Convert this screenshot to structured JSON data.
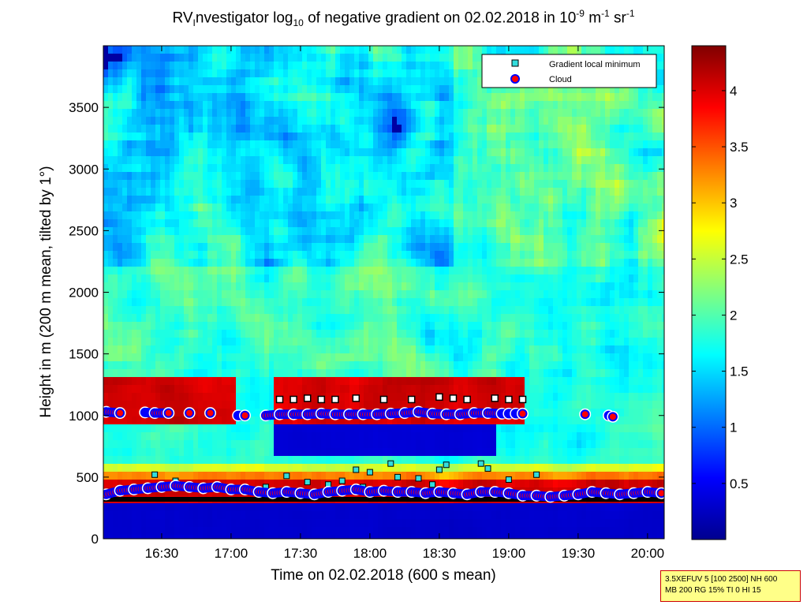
{
  "chart_data": {
    "type": "heatmap",
    "title_parts": {
      "prefix": "RV",
      "sub1": "I",
      "mid": "nvestigator log",
      "sub2": "10",
      "rest": " of negative gradient on 02.02.2018 in 10",
      "sup1": "-9",
      "unit1": " m",
      "sup2": "-1",
      "unit2": " sr",
      "sup3": "-1"
    },
    "xlabel": "Time on 02.02.2018 (600 s mean)",
    "ylabel": "Height in m (200 m mean, tilted by 1°)",
    "x_ticks": [
      "16:30",
      "17:00",
      "17:30",
      "18:00",
      "18:30",
      "19:00",
      "19:30",
      "20:00"
    ],
    "x_tick_hours": [
      16.5,
      17.0,
      17.5,
      18.0,
      18.5,
      19.0,
      19.5,
      20.0
    ],
    "xlim_hours": [
      16.08,
      20.12
    ],
    "y_ticks": [
      0,
      500,
      1000,
      1500,
      2000,
      2500,
      3000,
      3500
    ],
    "ylim": [
      0,
      4000
    ],
    "colorbar": {
      "ticks": [
        "0.5",
        "1",
        "1.5",
        "2",
        "2.5",
        "3",
        "3.5",
        "4"
      ],
      "tick_values": [
        0.5,
        1,
        1.5,
        2,
        2.5,
        3,
        3.5,
        4
      ],
      "range": [
        0,
        4.4
      ],
      "colormap": [
        "#00008f",
        "#0000ff",
        "#0080ff",
        "#00ffff",
        "#80ff80",
        "#ffff00",
        "#ff8000",
        "#ff0000",
        "#800000"
      ]
    },
    "legend": {
      "position": "top-right",
      "entries": [
        {
          "label": "Gradient local minimum",
          "marker": "square",
          "color": "#33dddd"
        },
        {
          "label": "Cloud",
          "marker": "circle",
          "color": "#ff0000",
          "edge": "#0000ff"
        }
      ]
    },
    "layers_description_values": {
      "low_cloud_height_m": 380,
      "upper_cloud_height_m": 1020,
      "black_minimum_low_m": 320,
      "black_minimum_upper_m": 1130
    },
    "cloud_series": [
      {
        "t": 16.1,
        "h": 1030
      },
      {
        "t": 16.2,
        "h": 1020
      },
      {
        "t": 16.38,
        "h": 1025
      },
      {
        "t": 16.45,
        "h": 1020
      },
      {
        "t": 16.55,
        "h": 1020
      },
      {
        "t": 16.7,
        "h": 1020
      },
      {
        "t": 16.85,
        "h": 1020
      },
      {
        "t": 17.05,
        "h": 1000
      },
      {
        "t": 17.1,
        "h": 1000
      },
      {
        "t": 17.25,
        "h": 1000
      },
      {
        "t": 17.35,
        "h": 1010
      },
      {
        "t": 17.45,
        "h": 1010
      },
      {
        "t": 17.55,
        "h": 1010
      },
      {
        "t": 17.65,
        "h": 1015
      },
      {
        "t": 17.75,
        "h": 1010
      },
      {
        "t": 17.85,
        "h": 1010
      },
      {
        "t": 17.95,
        "h": 1010
      },
      {
        "t": 18.05,
        "h": 1010
      },
      {
        "t": 18.15,
        "h": 1015
      },
      {
        "t": 18.25,
        "h": 1020
      },
      {
        "t": 18.35,
        "h": 1030
      },
      {
        "t": 18.45,
        "h": 1015
      },
      {
        "t": 18.55,
        "h": 1010
      },
      {
        "t": 18.65,
        "h": 1010
      },
      {
        "t": 18.75,
        "h": 1020
      },
      {
        "t": 18.85,
        "h": 1020
      },
      {
        "t": 18.95,
        "h": 1015
      },
      {
        "t": 19.0,
        "h": 1015
      },
      {
        "t": 19.05,
        "h": 1015
      },
      {
        "t": 19.1,
        "h": 1015
      },
      {
        "t": 19.55,
        "h": 1010
      },
      {
        "t": 19.72,
        "h": 1000
      },
      {
        "t": 19.75,
        "h": 990
      }
    ],
    "low_cloud_series": [
      {
        "t": 16.1,
        "h": 360
      },
      {
        "t": 16.2,
        "h": 390
      },
      {
        "t": 16.3,
        "h": 400
      },
      {
        "t": 16.4,
        "h": 410
      },
      {
        "t": 16.5,
        "h": 420
      },
      {
        "t": 16.6,
        "h": 430
      },
      {
        "t": 16.7,
        "h": 420
      },
      {
        "t": 16.8,
        "h": 410
      },
      {
        "t": 16.9,
        "h": 420
      },
      {
        "t": 17.0,
        "h": 400
      },
      {
        "t": 17.1,
        "h": 400
      },
      {
        "t": 17.2,
        "h": 380
      },
      {
        "t": 17.3,
        "h": 370
      },
      {
        "t": 17.4,
        "h": 380
      },
      {
        "t": 17.5,
        "h": 370
      },
      {
        "t": 17.6,
        "h": 360
      },
      {
        "t": 17.7,
        "h": 380
      },
      {
        "t": 17.8,
        "h": 390
      },
      {
        "t": 17.9,
        "h": 400
      },
      {
        "t": 18.0,
        "h": 380
      },
      {
        "t": 18.1,
        "h": 390
      },
      {
        "t": 18.2,
        "h": 380
      },
      {
        "t": 18.3,
        "h": 380
      },
      {
        "t": 18.4,
        "h": 370
      },
      {
        "t": 18.5,
        "h": 380
      },
      {
        "t": 18.6,
        "h": 370
      },
      {
        "t": 18.7,
        "h": 360
      },
      {
        "t": 18.8,
        "h": 380
      },
      {
        "t": 18.9,
        "h": 380
      },
      {
        "t": 19.0,
        "h": 370
      },
      {
        "t": 19.1,
        "h": 350
      },
      {
        "t": 19.2,
        "h": 350
      },
      {
        "t": 19.3,
        "h": 340
      },
      {
        "t": 19.4,
        "h": 350
      },
      {
        "t": 19.5,
        "h": 360
      },
      {
        "t": 19.6,
        "h": 380
      },
      {
        "t": 19.7,
        "h": 370
      },
      {
        "t": 19.8,
        "h": 360
      },
      {
        "t": 19.9,
        "h": 370
      },
      {
        "t": 20.0,
        "h": 380
      },
      {
        "t": 20.1,
        "h": 370
      }
    ],
    "upper_min_series": [
      {
        "t": 17.35,
        "h": 1130
      },
      {
        "t": 17.45,
        "h": 1130
      },
      {
        "t": 17.55,
        "h": 1140
      },
      {
        "t": 17.65,
        "h": 1130
      },
      {
        "t": 17.75,
        "h": 1130
      },
      {
        "t": 17.9,
        "h": 1140
      },
      {
        "t": 18.1,
        "h": 1130
      },
      {
        "t": 18.3,
        "h": 1130
      },
      {
        "t": 18.5,
        "h": 1150
      },
      {
        "t": 18.6,
        "h": 1140
      },
      {
        "t": 18.7,
        "h": 1130
      },
      {
        "t": 18.9,
        "h": 1140
      },
      {
        "t": 19.0,
        "h": 1130
      },
      {
        "t": 19.1,
        "h": 1130
      }
    ],
    "scatter_min_series": [
      {
        "t": 16.45,
        "h": 520
      },
      {
        "t": 16.6,
        "h": 470
      },
      {
        "t": 17.4,
        "h": 510
      },
      {
        "t": 17.55,
        "h": 460
      },
      {
        "t": 17.7,
        "h": 440
      },
      {
        "t": 17.8,
        "h": 470
      },
      {
        "t": 17.9,
        "h": 560
      },
      {
        "t": 18.0,
        "h": 540
      },
      {
        "t": 18.15,
        "h": 610
      },
      {
        "t": 18.2,
        "h": 500
      },
      {
        "t": 18.35,
        "h": 490
      },
      {
        "t": 18.5,
        "h": 560
      },
      {
        "t": 18.55,
        "h": 600
      },
      {
        "t": 18.8,
        "h": 610
      },
      {
        "t": 18.85,
        "h": 570
      },
      {
        "t": 19.0,
        "h": 480
      },
      {
        "t": 19.2,
        "h": 520
      },
      {
        "t": 17.25,
        "h": 420
      },
      {
        "t": 17.95,
        "h": 420
      },
      {
        "t": 18.45,
        "h": 440
      }
    ]
  },
  "info_box": {
    "line1": "3.5XEFUV 5 [100 2500] NH 600",
    "line2": "MB 200 RG 15% TI 0 HI 15"
  }
}
